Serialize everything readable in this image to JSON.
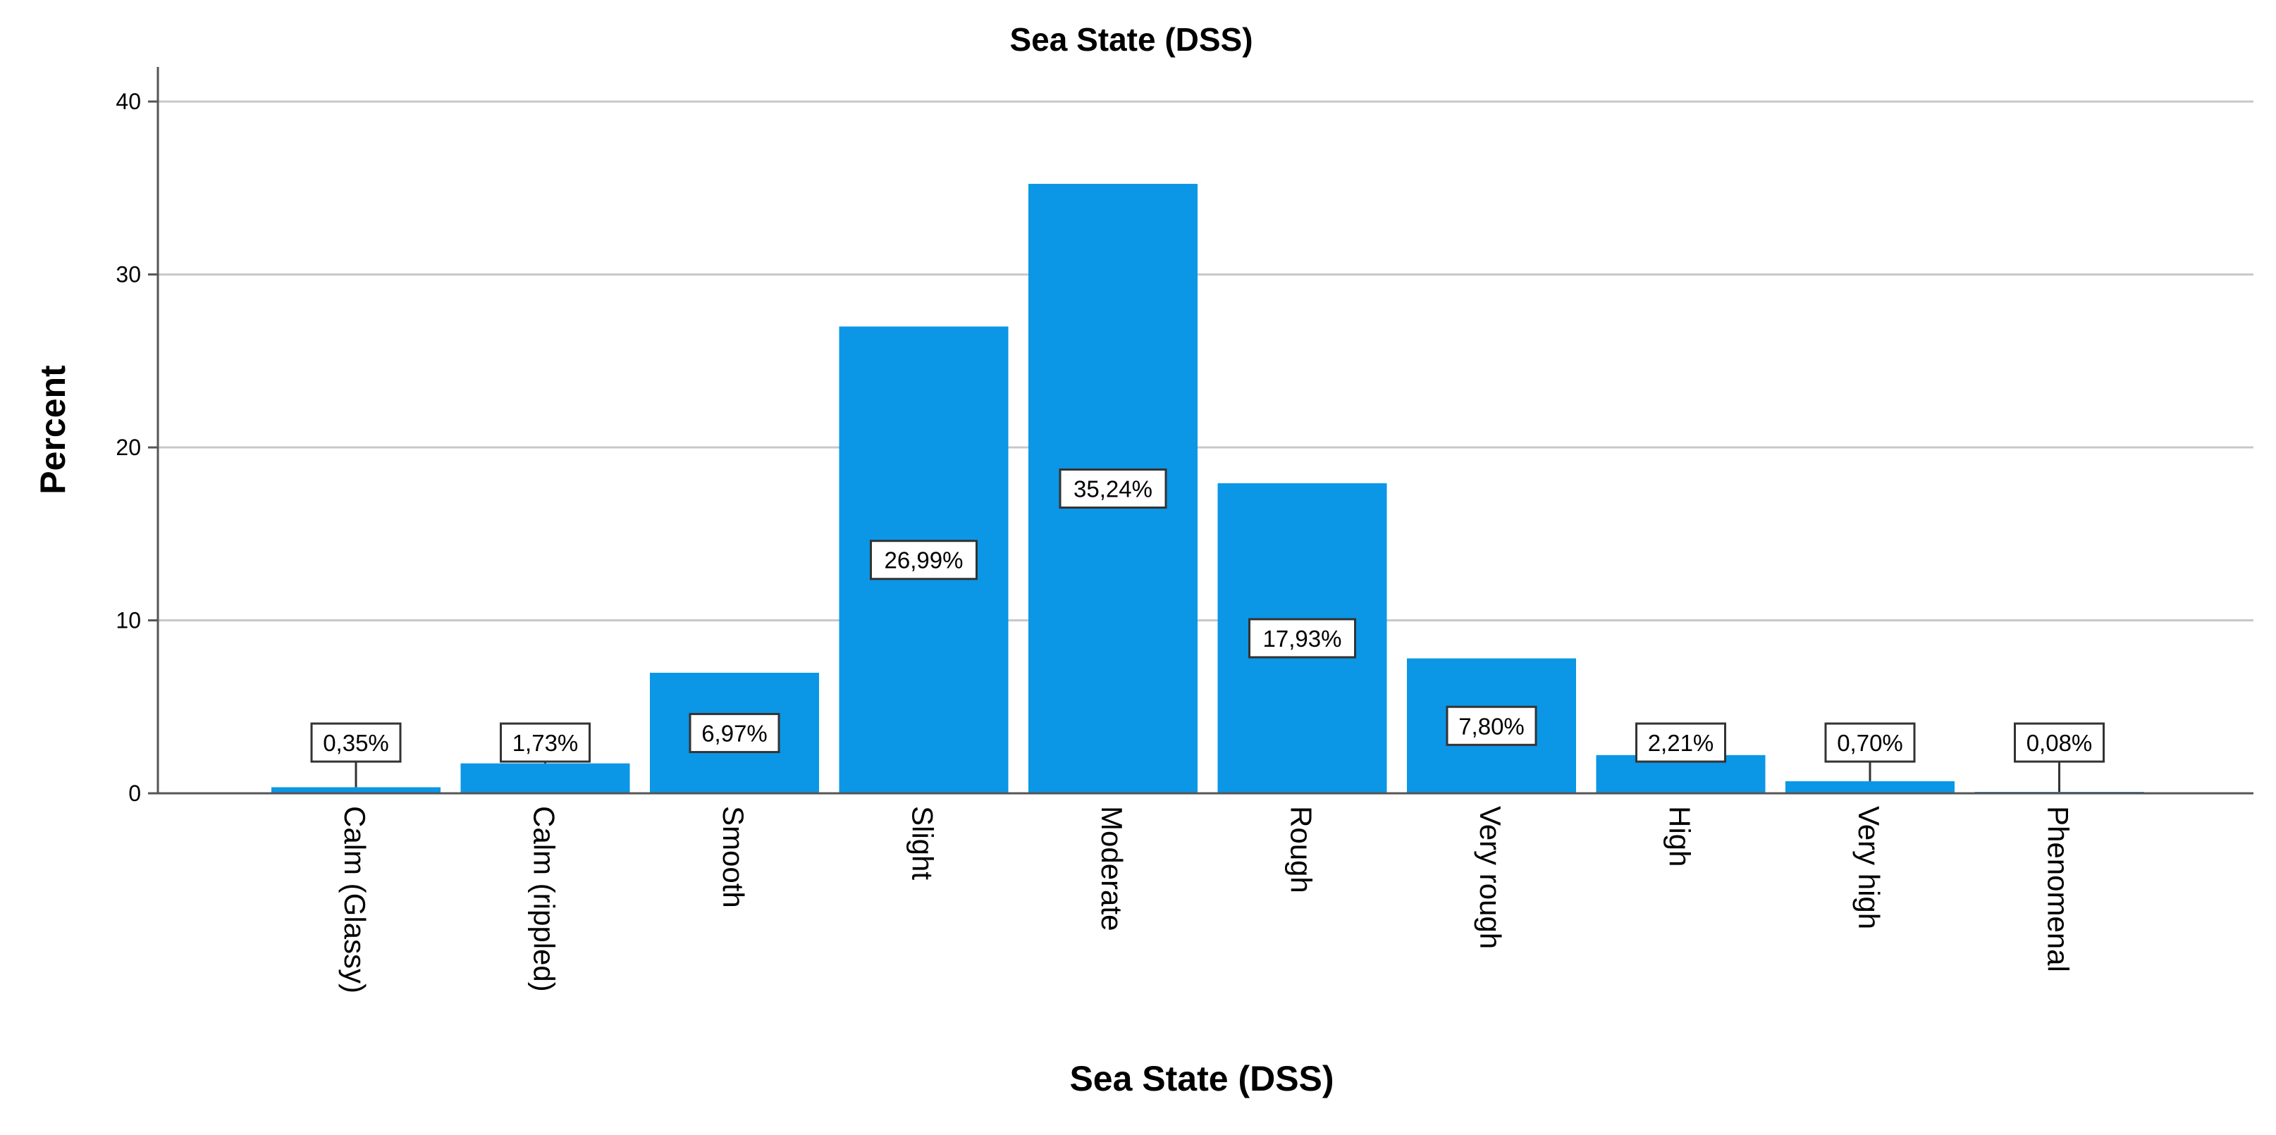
{
  "chart_data": {
    "type": "bar",
    "title": "Sea State (DSS)",
    "xlabel": "Sea State (DSS)",
    "ylabel": "Percent",
    "ylim": [
      0,
      42
    ],
    "yticks": [
      0,
      10,
      20,
      30,
      40
    ],
    "grid": true,
    "legend": "none",
    "bar_color": "#0b96e6",
    "categories": [
      "Calm (Glassy)",
      "Calm (rippled)",
      "Smooth",
      "Slight",
      "Moderate",
      "Rough",
      "Very rough",
      "High",
      "Very high",
      "Phenomenal"
    ],
    "values": [
      0.35,
      1.73,
      6.97,
      26.99,
      35.24,
      17.93,
      7.8,
      2.21,
      0.7,
      0.08
    ],
    "data_labels": [
      "0,35%",
      "1,73%",
      "6,97%",
      "26,99%",
      "35,24%",
      "17,93%",
      "7,80%",
      "2,21%",
      "0,70%",
      "0,08%"
    ]
  }
}
